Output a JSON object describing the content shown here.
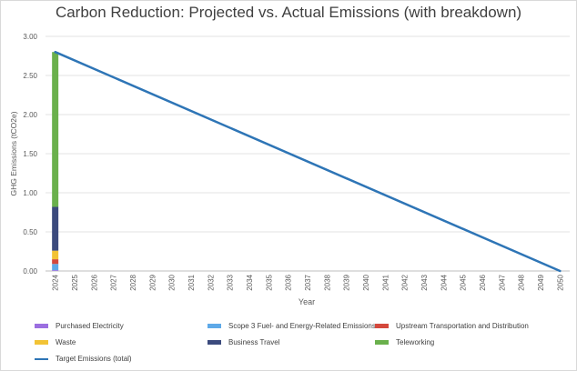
{
  "chart_data": {
    "type": "bar+line",
    "title": "Carbon Reduction: Projected vs. Actual Emissions (with breakdown)",
    "xlabel": "Year",
    "ylabel": "GHG Emissions (tCO2e)",
    "ylim": [
      0,
      3
    ],
    "yticks": [
      "0.00",
      "0.50",
      "1.00",
      "1.50",
      "2.00",
      "2.50",
      "3.00"
    ],
    "grid": true,
    "legend_position": "bottom",
    "categories": [
      "2024",
      "2025",
      "2026",
      "2027",
      "2028",
      "2029",
      "2030",
      "2031",
      "2032",
      "2033",
      "2034",
      "2035",
      "2036",
      "2037",
      "2038",
      "2039",
      "2040",
      "2041",
      "2042",
      "2043",
      "2044",
      "2045",
      "2046",
      "2047",
      "2048",
      "2049",
      "2050"
    ],
    "stacked_series": [
      {
        "name": "Purchased Electricity",
        "color": "#9b6fe0",
        "values": [
          0.01
        ]
      },
      {
        "name": "Scope 3 Fuel- and Energy-Related Emissions",
        "color": "#5ea9e8",
        "values": [
          0.08
        ]
      },
      {
        "name": "Upstream Transportation and Distribution",
        "color": "#d4483c",
        "values": [
          0.06
        ]
      },
      {
        "name": "Waste",
        "color": "#f2c335",
        "values": [
          0.11
        ]
      },
      {
        "name": "Business Travel",
        "color": "#3b4a7d",
        "values": [
          0.56
        ]
      },
      {
        "name": "Teleworking",
        "color": "#6ab04c",
        "values": [
          1.98
        ]
      }
    ],
    "line_series": [
      {
        "name": "Target Emissions (total)",
        "color": "#2e75b6",
        "x": [
          "2024",
          "2050"
        ],
        "values": [
          2.8,
          0.0
        ]
      }
    ]
  }
}
